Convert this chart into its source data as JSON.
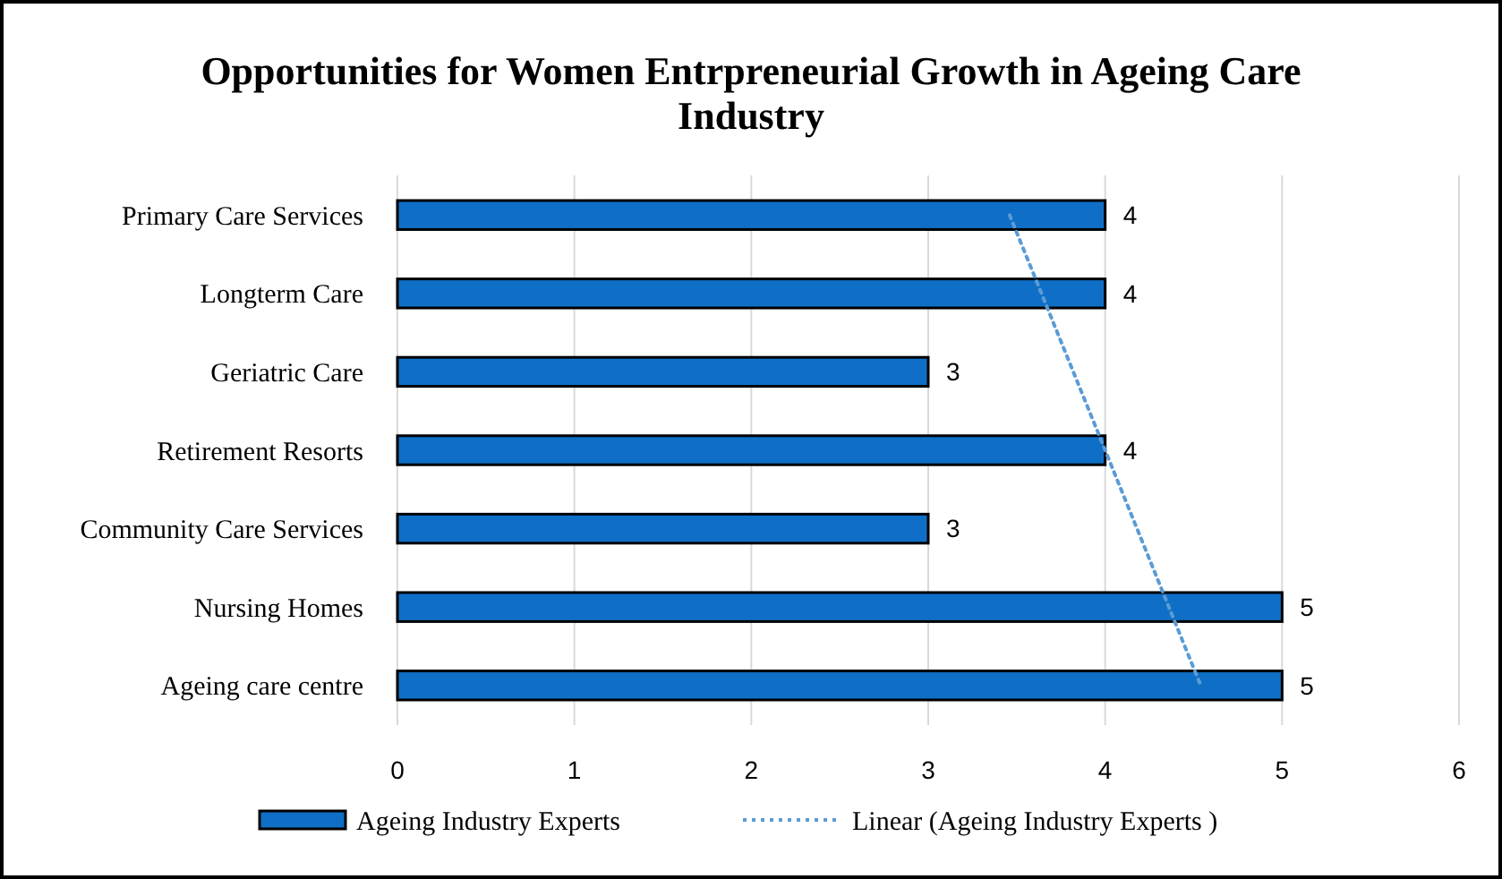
{
  "chart_data": {
    "type": "bar",
    "orientation": "horizontal",
    "title": "Opportunities for Women Entrpreneurial Growth in Ageing Care Industry",
    "categories": [
      "Primary Care Services",
      "Longterm Care",
      "Geriatric Care",
      "Retirement Resorts",
      "Community Care Services",
      "Nursing Homes",
      "Ageing care centre"
    ],
    "series": [
      {
        "name": "Ageing Industry Experts",
        "color": "#0f6fc6",
        "values": [
          4,
          4,
          3,
          4,
          3,
          5,
          5
        ],
        "value_labels": [
          "4",
          "4",
          "3",
          "4",
          "3",
          "5",
          "5"
        ]
      },
      {
        "name": "Linear (Ageing Industry Experts )",
        "type": "line",
        "color": "#5b9bd5",
        "line_style": "dotted",
        "marker": "none",
        "values": [
          3.46,
          3.64,
          3.82,
          4.0,
          4.18,
          4.36,
          4.54
        ]
      }
    ],
    "xlim": [
      0,
      6
    ],
    "xticks": [
      0,
      1,
      2,
      3,
      4,
      5,
      6
    ],
    "grid": "x",
    "legend": "bottom"
  }
}
